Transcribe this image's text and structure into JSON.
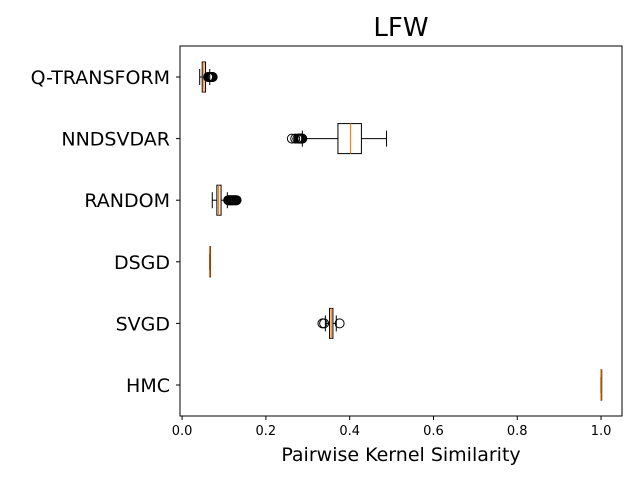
{
  "chart_data": {
    "type": "boxplot",
    "orientation": "horizontal",
    "title": "LFW",
    "xlabel": "Pairwise Kernel Similarity",
    "ylabel": "",
    "xlim": [
      -0.005,
      1.05
    ],
    "x_ticks": [
      {
        "value": 0.0,
        "label": "0.0"
      },
      {
        "value": 0.2,
        "label": "0.2"
      },
      {
        "value": 0.4,
        "label": "0.4"
      },
      {
        "value": 0.6,
        "label": "0.6"
      },
      {
        "value": 0.8,
        "label": "0.8"
      },
      {
        "value": 1.0,
        "label": "1.0"
      }
    ],
    "grid": false,
    "median_color": "#ff7f0e",
    "box_color": "#000000",
    "categories": [
      "Q-TRANSFORM",
      "NNDSVDAR",
      "RANDOM",
      "DSGD",
      "SVGD",
      "HMC"
    ],
    "series": [
      {
        "category": "Q-TRANSFORM",
        "whisker_low": 0.042,
        "q1": 0.048,
        "median": 0.052,
        "q3": 0.056,
        "whisker_high": 0.066,
        "outliers": [
          0.062,
          0.064,
          0.066,
          0.067,
          0.068,
          0.069,
          0.07,
          0.071,
          0.072,
          0.073
        ]
      },
      {
        "category": "NNDSVDAR",
        "whisker_low": 0.287,
        "q1": 0.372,
        "median": 0.402,
        "q3": 0.428,
        "whisker_high": 0.488,
        "outliers": [
          0.262,
          0.27,
          0.275,
          0.278,
          0.28,
          0.282,
          0.284,
          0.285,
          0.286,
          0.287
        ]
      },
      {
        "category": "RANDOM",
        "whisker_low": 0.072,
        "q1": 0.083,
        "median": 0.087,
        "q3": 0.093,
        "whisker_high": 0.108,
        "outliers": [
          0.11,
          0.112,
          0.114,
          0.116,
          0.118,
          0.12,
          0.122,
          0.124,
          0.126,
          0.128,
          0.13
        ]
      },
      {
        "category": "DSGD",
        "whisker_low": 0.0655,
        "q1": 0.066,
        "median": 0.0665,
        "q3": 0.067,
        "whisker_high": 0.0675,
        "outliers": []
      },
      {
        "category": "SVGD",
        "whisker_low": 0.342,
        "q1": 0.352,
        "median": 0.356,
        "q3": 0.36,
        "whisker_high": 0.368,
        "outliers": [
          0.335,
          0.339,
          0.376
        ]
      },
      {
        "category": "HMC",
        "whisker_low": 0.9995,
        "q1": 0.9997,
        "median": 1.0,
        "q3": 1.0003,
        "whisker_high": 1.0005,
        "outliers": []
      }
    ]
  }
}
